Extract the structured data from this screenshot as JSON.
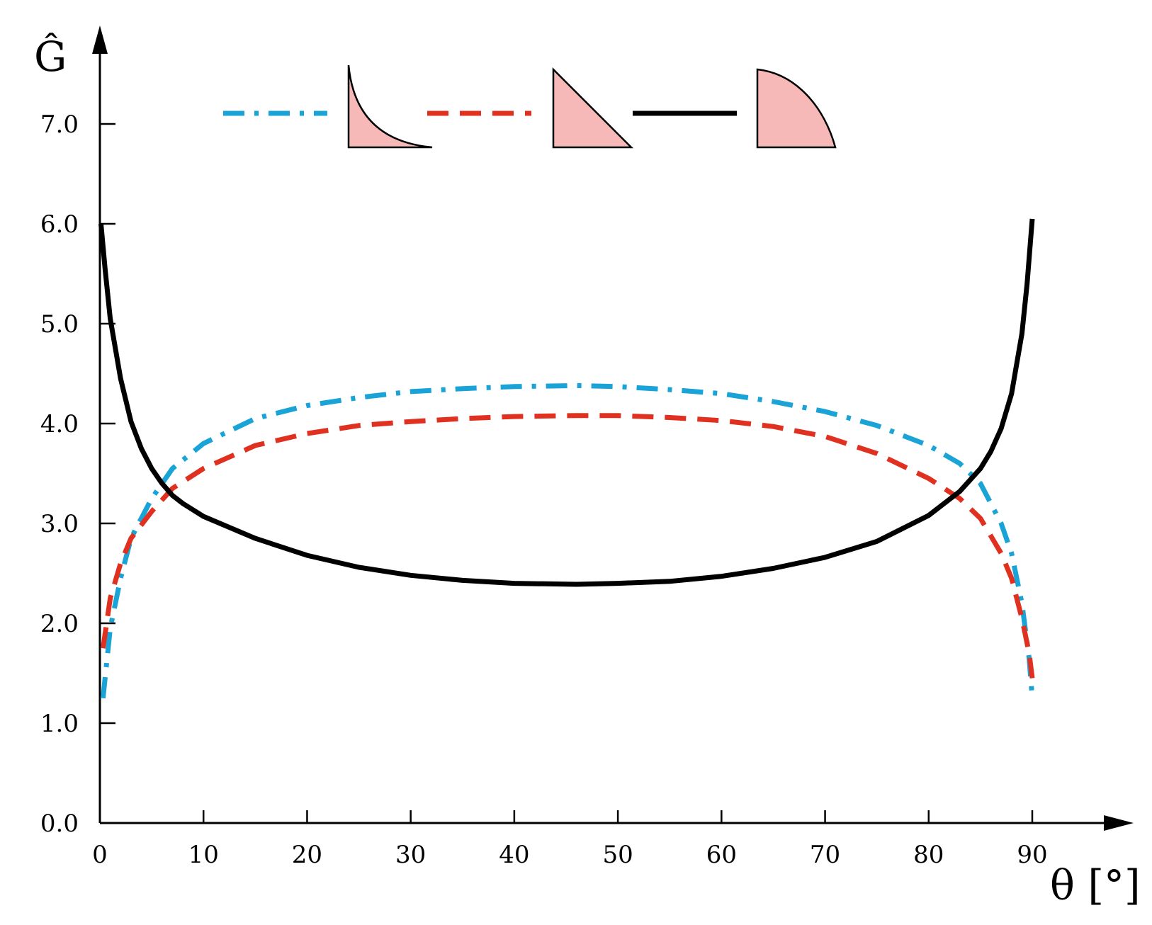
{
  "chart_data": {
    "type": "line",
    "xlabel": "θ [°]",
    "ylabel": "Ĝ",
    "xlim": [
      0,
      90
    ],
    "ylim": [
      0,
      7.0
    ],
    "x_ticks": [
      0,
      10,
      20,
      30,
      40,
      50,
      60,
      70,
      80,
      90
    ],
    "x_tick_labels": [
      "0",
      "10",
      "20",
      "30",
      "40",
      "50",
      "60",
      "70",
      "80",
      "90"
    ],
    "y_ticks": [
      0,
      1,
      2,
      3,
      4,
      5,
      6,
      7
    ],
    "y_tick_labels": [
      "0.0",
      "1.0",
      "2.0",
      "3.0",
      "4.0",
      "5.0",
      "6.0",
      "7.0"
    ],
    "grid": false,
    "legend_position": "top-center",
    "series": [
      {
        "style": "dash-dot",
        "color": "#1aa3d6",
        "legend_shape": "concave-profile",
        "x": [
          0.3,
          1,
          2,
          3,
          5,
          7,
          10,
          15,
          20,
          25,
          30,
          35,
          40,
          46,
          50,
          55,
          60,
          65,
          70,
          75,
          80,
          83,
          85,
          87,
          88,
          89,
          89.7,
          90
        ],
        "y": [
          1.25,
          1.95,
          2.45,
          2.85,
          3.25,
          3.55,
          3.8,
          4.05,
          4.18,
          4.26,
          4.32,
          4.35,
          4.37,
          4.38,
          4.37,
          4.34,
          4.3,
          4.22,
          4.12,
          3.98,
          3.78,
          3.6,
          3.4,
          3.0,
          2.7,
          2.2,
          1.65,
          1.25
        ]
      },
      {
        "style": "dashed",
        "color": "#e03020",
        "legend_shape": "triangle-profile",
        "x": [
          0.3,
          1,
          2,
          3,
          5,
          7,
          10,
          15,
          20,
          25,
          30,
          35,
          40,
          46,
          50,
          55,
          60,
          65,
          70,
          75,
          80,
          83,
          85,
          87,
          88,
          89,
          89.7,
          90
        ],
        "y": [
          1.75,
          2.25,
          2.6,
          2.85,
          3.12,
          3.35,
          3.55,
          3.78,
          3.9,
          3.98,
          4.02,
          4.05,
          4.07,
          4.08,
          4.08,
          4.06,
          4.03,
          3.97,
          3.87,
          3.7,
          3.45,
          3.25,
          3.05,
          2.7,
          2.45,
          2.05,
          1.7,
          1.45
        ]
      },
      {
        "style": "solid",
        "color": "#000000",
        "legend_shape": "convex-profile",
        "x": [
          0.1,
          0.5,
          1,
          2,
          3,
          4,
          5,
          6,
          7,
          8,
          10,
          15,
          20,
          25,
          30,
          35,
          40,
          46,
          50,
          55,
          60,
          65,
          70,
          75,
          80,
          83,
          85,
          86,
          87,
          88,
          89,
          89.5,
          90
        ],
        "y": [
          6.0,
          5.55,
          5.05,
          4.45,
          4.02,
          3.75,
          3.55,
          3.4,
          3.28,
          3.2,
          3.07,
          2.85,
          2.68,
          2.56,
          2.48,
          2.43,
          2.4,
          2.39,
          2.4,
          2.42,
          2.47,
          2.55,
          2.66,
          2.82,
          3.08,
          3.32,
          3.55,
          3.72,
          3.95,
          4.3,
          4.9,
          5.4,
          6.05
        ]
      }
    ]
  }
}
